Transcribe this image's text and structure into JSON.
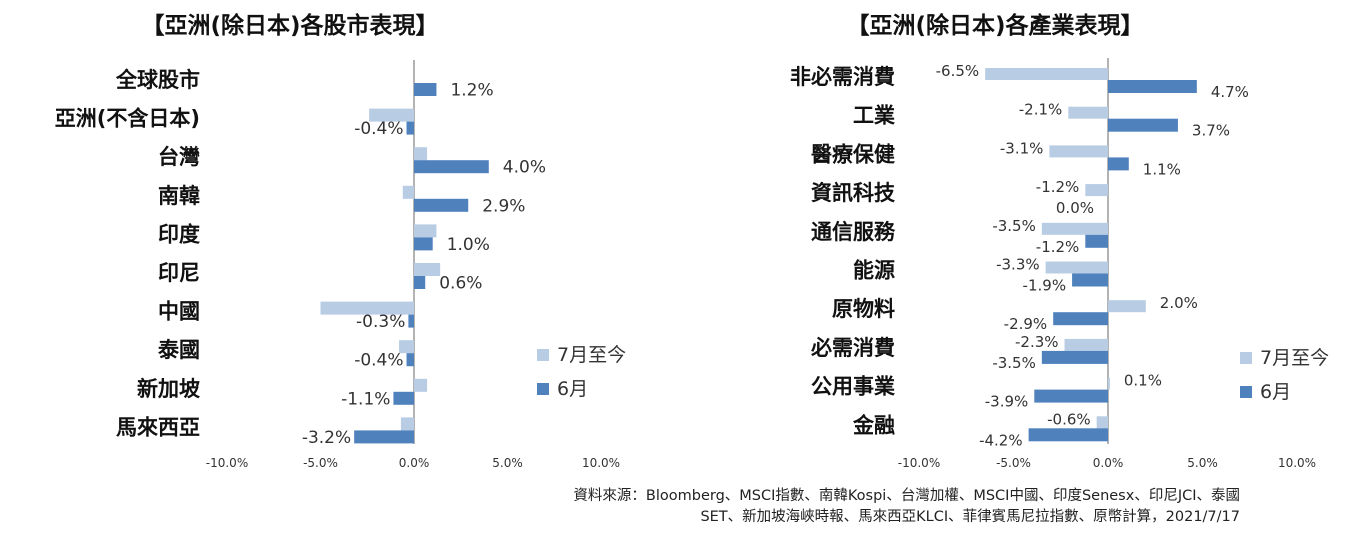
{
  "chart_data": [
    {
      "type": "bar",
      "orientation": "horizontal",
      "title": "【亞洲(除日本)各股市表現】",
      "categories": [
        "全球股市",
        "亞洲(不含日本)",
        "台灣",
        "南韓",
        "印度",
        "印尼",
        "中國",
        "泰國",
        "新加坡",
        "馬來西亞"
      ],
      "series": [
        {
          "name": "7月至今",
          "color": "#b8cce4",
          "values": [
            0.0,
            -2.4,
            0.7,
            -0.6,
            1.2,
            1.4,
            -5.0,
            -0.8,
            0.7,
            -0.7
          ]
        },
        {
          "name": "6月",
          "color": "#4f81bd",
          "values": [
            1.2,
            -0.4,
            4.0,
            2.9,
            1.0,
            0.6,
            -0.3,
            -0.4,
            -1.1,
            -3.2
          ]
        }
      ],
      "data_labels": [
        "1.2%",
        "-0.4%",
        "4.0%",
        "2.9%",
        "1.0%",
        "0.6%",
        "-0.3%",
        "-0.4%",
        "-1.1%",
        "-3.2%"
      ],
      "xlim": [
        -10,
        10
      ],
      "xticks": [
        -10,
        -5,
        0,
        5,
        10
      ],
      "xtick_labels": [
        "-10.0%",
        "-5.0%",
        "0.0%",
        "5.0%",
        "10.0%"
      ],
      "legend": [
        "7月至今",
        "6月"
      ],
      "legend_position": "lower-right",
      "grid": false
    },
    {
      "type": "bar",
      "orientation": "horizontal",
      "title": "【亞洲(除日本)各產業表現】",
      "categories": [
        "非必需消費",
        "工業",
        "醫療保健",
        "資訊科技",
        "通信服務",
        "能源",
        "原物料",
        "必需消費",
        "公用事業",
        "金融"
      ],
      "series": [
        {
          "name": "7月至今",
          "color": "#b8cce4",
          "values": [
            -6.5,
            -2.1,
            -3.1,
            -1.2,
            -3.5,
            -3.3,
            2.0,
            -2.3,
            0.1,
            -0.6
          ]
        },
        {
          "name": "6月",
          "color": "#4f81bd",
          "values": [
            4.7,
            3.7,
            1.1,
            0.0,
            -1.2,
            -1.9,
            -2.9,
            -3.5,
            -3.9,
            -4.2
          ]
        }
      ],
      "xlim": [
        -10,
        10
      ],
      "xticks": [
        -10,
        -5,
        0,
        5,
        10
      ],
      "xtick_labels": [
        "-10.0%",
        "-5.0%",
        "0.0%",
        "5.0%",
        "10.0%"
      ],
      "legend": [
        "7月至今",
        "6月"
      ],
      "legend_position": "lower-right",
      "grid": false
    }
  ],
  "source_lines": [
    "資料來源：Bloomberg、MSCI指數、南韓Kospi、台灣加權、MSCI中國、印度Senesx、印尼JCI、泰國",
    "SET、新加坡海峽時報、馬來西亞KLCI、菲律賓馬尼拉指數、原幣計算，2021/7/17"
  ]
}
